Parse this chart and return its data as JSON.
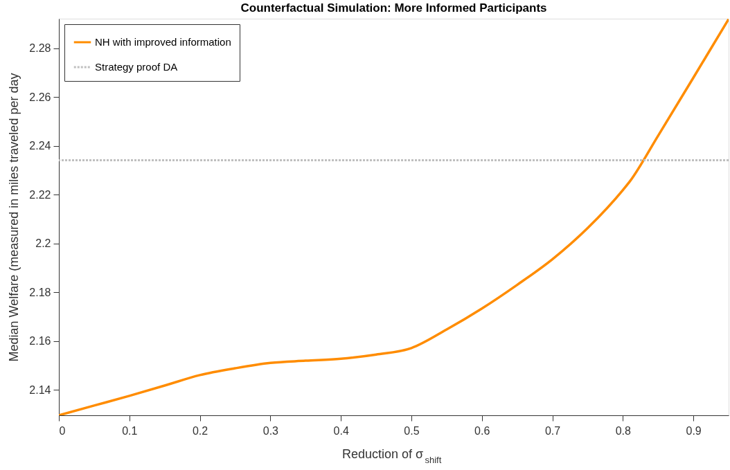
{
  "chart_data": {
    "type": "line",
    "title": "Counterfactual Simulation: More Informed Participants",
    "xlabel": "Reduction of σ$_{shift}$",
    "ylabel": "Median Welfare (measured in miles traveled per day",
    "series": [
      {
        "name": "NH with improved information",
        "color": "#ff8c00",
        "x": [
          0,
          0.05,
          0.1,
          0.15,
          0.2,
          0.25,
          0.3,
          0.35,
          0.4,
          0.45,
          0.5,
          0.55,
          0.6,
          0.65,
          0.7,
          0.75,
          0.8,
          0.81,
          0.85,
          0.9,
          0.95
        ],
        "values": [
          2.1295,
          2.1335,
          2.1375,
          2.1417,
          2.146,
          2.1488,
          2.151,
          2.1519,
          2.1527,
          2.1544,
          2.1571,
          2.1647,
          2.1733,
          2.183,
          2.1935,
          2.2063,
          2.2219,
          2.2255,
          2.2442,
          2.268,
          2.292
        ]
      }
    ],
    "ref_lines": [
      {
        "axis": "y",
        "value": 2.2341,
        "label": "Strategy proof DA",
        "color": "#c0c0c0",
        "line_style": "dotted"
      }
    ],
    "xlim": [
      0,
      0.95
    ],
    "xticks": [
      0,
      0.1,
      0.2,
      0.3,
      0.4,
      0.5,
      0.6,
      0.7,
      0.8,
      0.9
    ],
    "ylim": [
      2.1295,
      2.2922
    ],
    "yticks": [
      2.14,
      2.16,
      2.18,
      2.2,
      2.22,
      2.24,
      2.26,
      2.28
    ],
    "grid": false,
    "legend": "top left",
    "line_style": "solid",
    "marker": "none"
  }
}
